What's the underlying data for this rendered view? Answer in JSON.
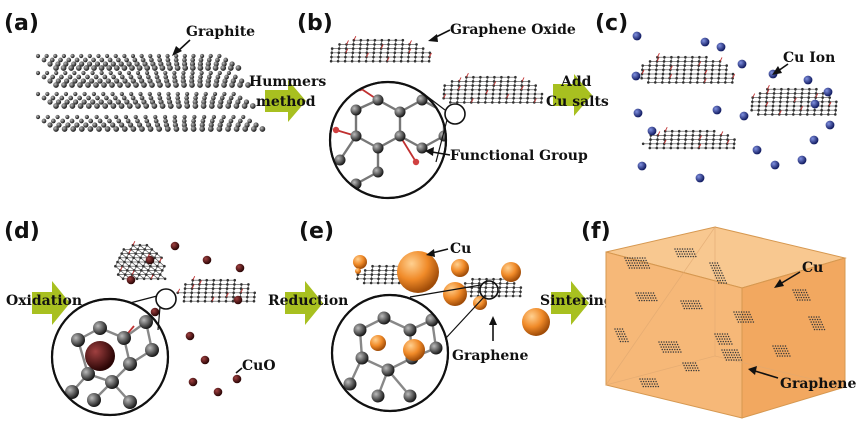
{
  "panels": {
    "a": {
      "label": "(a)",
      "annotation": "Graphite"
    },
    "b": {
      "label": "(b)",
      "annotation": "Graphene Oxide",
      "annotation2": "Functional Group"
    },
    "c": {
      "label": "(c)",
      "annotation": "Cu Ion"
    },
    "d": {
      "label": "(d)",
      "annotation": "CuO"
    },
    "e": {
      "label": "(e)",
      "annotation": "Cu",
      "annotation2": "Graphene"
    },
    "f": {
      "label": "(f)",
      "annotation": "Cu",
      "annotation2": "Graphene"
    }
  },
  "steps": {
    "ab_line1": "Hummers",
    "ab_line2": "method",
    "bc_line1": "Add",
    "bc_line2": "Cu salts",
    "d_in": "Oxidation",
    "de": "Reduction",
    "ef": "Sintering"
  },
  "colors": {
    "arrow": "#a8c020",
    "carbon": "#3a3a3a",
    "cu_ion": "#2a3a9a",
    "cuo": "#4a1010",
    "cu": "#e07820",
    "cube": "#f4b070"
  }
}
